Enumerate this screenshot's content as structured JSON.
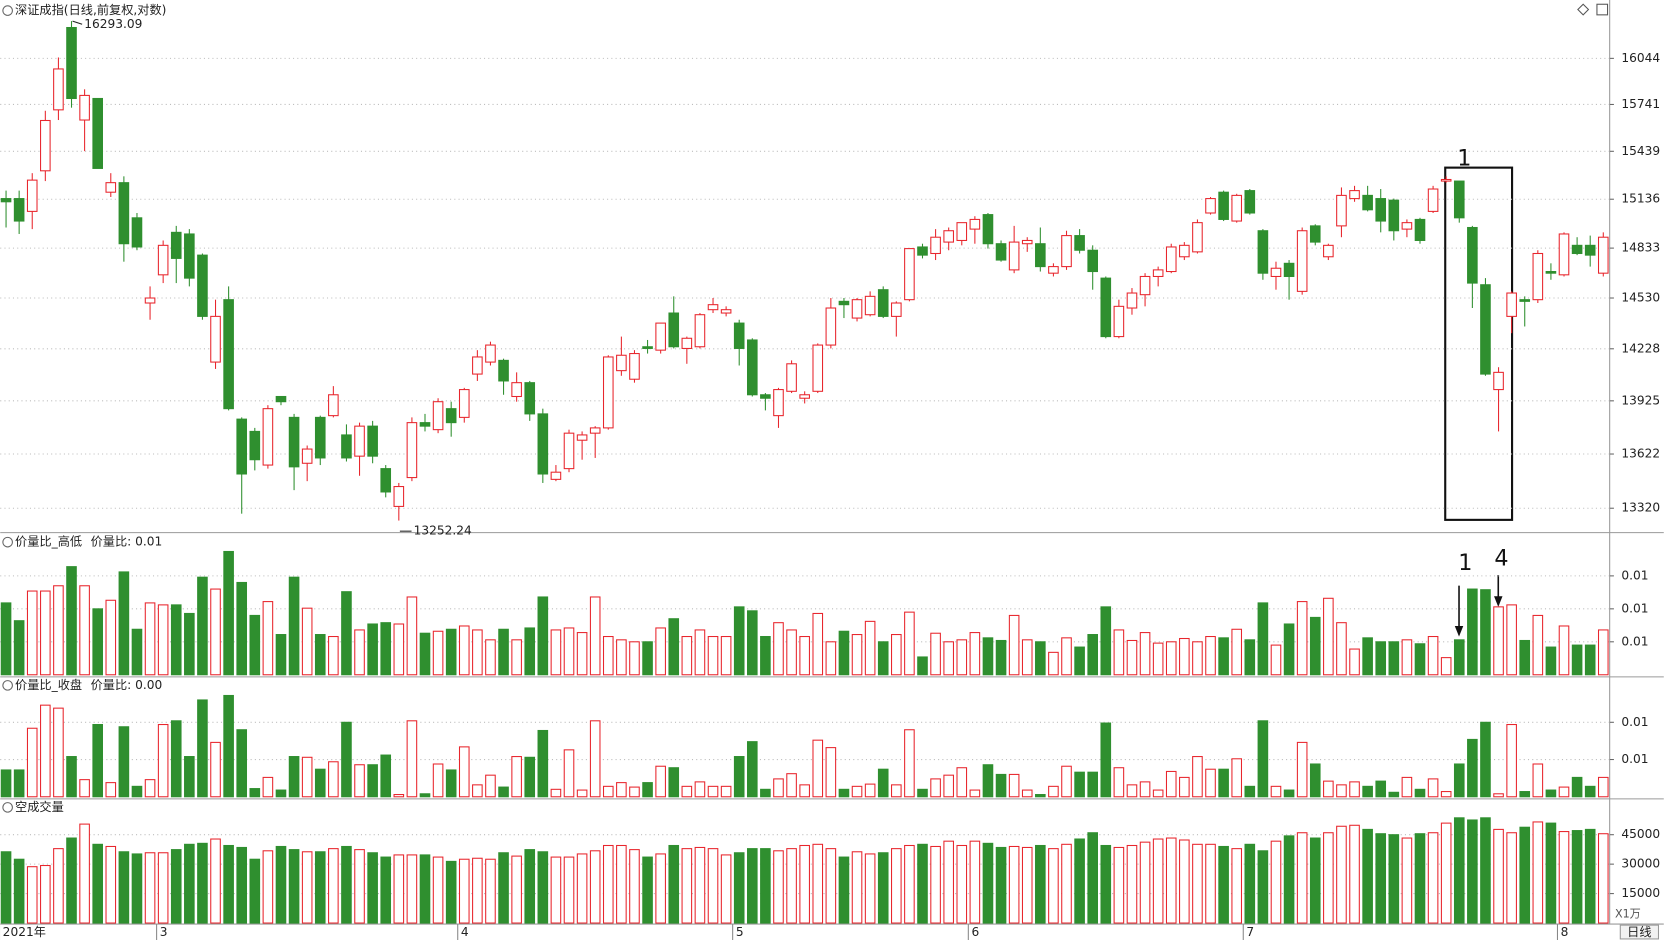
{
  "chart_data": [
    {
      "type": "candlestick",
      "title": "深证成指(日线,前复权,对数)",
      "period": "日线",
      "log_scale": true,
      "grid": true,
      "up_color": "#e8262d",
      "down_color": "#2f8f2f",
      "ylim": [
        13198,
        16400
      ],
      "yticks": [
        13320,
        13622,
        13925,
        14228,
        14530,
        14833,
        15136,
        15439,
        15741,
        16044
      ],
      "annotations": [
        "1"
      ],
      "categories": [
        "2021年",
        null,
        null,
        null,
        null,
        null,
        null,
        null,
        null,
        null,
        null,
        null,
        "3",
        null,
        null,
        null,
        null,
        null,
        null,
        null,
        null,
        null,
        null,
        null,
        null,
        null,
        null,
        null,
        null,
        null,
        null,
        null,
        null,
        null,
        null,
        "4",
        null,
        null,
        null,
        null,
        null,
        null,
        null,
        null,
        null,
        null,
        null,
        null,
        null,
        null,
        null,
        null,
        null,
        null,
        null,
        null,
        "5",
        null,
        null,
        null,
        null,
        null,
        null,
        null,
        null,
        null,
        null,
        null,
        null,
        null,
        null,
        null,
        null,
        null,
        "6",
        null,
        null,
        null,
        null,
        null,
        null,
        null,
        null,
        null,
        null,
        null,
        null,
        null,
        null,
        null,
        null,
        null,
        null,
        null,
        null,
        "7",
        null,
        null,
        null,
        null,
        null,
        null,
        null,
        null,
        null,
        null,
        null,
        null,
        null,
        null,
        null,
        null,
        null,
        null,
        null,
        null,
        null,
        null,
        null,
        "8",
        null,
        null,
        null
      ],
      "open": [
        15140,
        15140,
        15060,
        15315,
        15706,
        16250,
        15640,
        15780,
        15180,
        15240,
        15020,
        14500,
        14670,
        14930,
        14920,
        14790,
        14150,
        14520,
        13820,
        13750,
        13560,
        13950,
        13830,
        13570,
        13830,
        13840,
        13730,
        13610,
        13780,
        13540,
        13330,
        13490,
        13800,
        13760,
        13880,
        13830,
        14080,
        14150,
        14160,
        13950,
        14030,
        13850,
        13480,
        13540,
        13700,
        13740,
        13770,
        14100,
        14050,
        14240,
        14220,
        14440,
        14230,
        14240,
        14460,
        14440,
        14380,
        14280,
        13960,
        13840,
        13980,
        13940,
        13980,
        14250,
        14510,
        14410,
        14430,
        14580,
        14420,
        14520,
        14840,
        14800,
        14870,
        14880,
        14950,
        15040,
        14860,
        14700,
        14860,
        14860,
        14680,
        14720,
        14910,
        14820,
        14650,
        14300,
        14470,
        14550,
        14660,
        14690,
        14780,
        14810,
        15050,
        15180,
        15000,
        15190,
        14940,
        14660,
        14740,
        14570,
        14970,
        14780,
        14970,
        15140,
        15160,
        15140,
        15130,
        14950,
        15010,
        15060,
        15250,
        15250,
        14960,
        14610,
        13990,
        14420,
        14520,
        14520,
        14690,
        14670,
        14850,
        14850,
        14680
      ],
      "high": [
        15190,
        15190,
        15300,
        15700,
        16050,
        16293.09,
        15840,
        15780,
        15300,
        15280,
        15050,
        14600,
        14880,
        14970,
        14950,
        14800,
        14520,
        14600,
        13830,
        13770,
        13900,
        13950,
        13850,
        13670,
        13840,
        14010,
        13790,
        13800,
        13810,
        13560,
        13460,
        13830,
        13850,
        13940,
        13920,
        14000,
        14220,
        14270,
        14170,
        14090,
        14040,
        13880,
        13560,
        13760,
        13750,
        13780,
        14190,
        14300,
        14220,
        14280,
        14380,
        14540,
        14300,
        14440,
        14530,
        14480,
        14400,
        14290,
        13970,
        14000,
        14160,
        13980,
        14260,
        14530,
        14530,
        14530,
        14570,
        14600,
        14510,
        14830,
        14860,
        14950,
        14960,
        14990,
        15030,
        15050,
        14880,
        14970,
        14900,
        14960,
        14740,
        14940,
        14950,
        14850,
        14660,
        14520,
        14590,
        14680,
        14720,
        14860,
        14870,
        15010,
        15150,
        15190,
        15170,
        15200,
        14950,
        14750,
        14760,
        14960,
        14980,
        14860,
        15210,
        15220,
        15220,
        15200,
        15140,
        15010,
        15020,
        15220,
        15280,
        15250,
        14970,
        14650,
        14120,
        14570,
        14540,
        14820,
        14740,
        14930,
        14900,
        14910,
        14930
      ],
      "low": [
        14960,
        14920,
        14950,
        15250,
        15640,
        15720,
        15440,
        15330,
        15150,
        14750,
        14820,
        14400,
        14620,
        14620,
        14600,
        14400,
        14110,
        13870,
        13290,
        13530,
        13540,
        13900,
        13420,
        13470,
        13560,
        13830,
        13580,
        13500,
        13570,
        13380,
        13252.24,
        13470,
        13750,
        13740,
        13720,
        13800,
        14040,
        14130,
        13960,
        13920,
        13810,
        13460,
        13470,
        13520,
        13590,
        13600,
        13760,
        14070,
        14030,
        14200,
        14200,
        14230,
        14140,
        14230,
        14440,
        14420,
        14130,
        13950,
        13870,
        13770,
        13970,
        13910,
        13970,
        14230,
        14410,
        14390,
        14420,
        14410,
        14300,
        14510,
        14770,
        14760,
        14820,
        14850,
        14860,
        14830,
        14750,
        14680,
        14810,
        14690,
        14660,
        14700,
        14800,
        14580,
        14290,
        14290,
        14430,
        14480,
        14600,
        14680,
        14760,
        14800,
        15040,
        15000,
        14990,
        15040,
        14640,
        14580,
        14520,
        14550,
        14850,
        14760,
        14900,
        15120,
        15060,
        14930,
        14880,
        14900,
        14860,
        15050,
        15240,
        14990,
        14470,
        14070,
        13750,
        14320,
        14360,
        14500,
        14640,
        14660,
        14790,
        14720,
        14660
      ],
      "close": [
        15120,
        15000,
        15256,
        15637,
        15974,
        15780,
        15800,
        15330,
        15240,
        14860,
        14840,
        14530,
        14850,
        14770,
        14650,
        14420,
        14420,
        13880,
        13510,
        13590,
        13880,
        13920,
        13550,
        13650,
        13600,
        13960,
        13600,
        13780,
        13610,
        13410,
        13440,
        13800,
        13780,
        13920,
        13800,
        13990,
        14180,
        14250,
        14040,
        14030,
        13850,
        13510,
        13520,
        13740,
        13730,
        13770,
        14180,
        14190,
        14200,
        14230,
        14380,
        14240,
        14290,
        14430,
        14490,
        14460,
        14230,
        13960,
        13940,
        13990,
        14140,
        13960,
        14250,
        14470,
        14490,
        14520,
        14540,
        14420,
        14500,
        14830,
        14790,
        14900,
        14940,
        14990,
        15010,
        14860,
        14760,
        14870,
        14880,
        14720,
        14720,
        14910,
        14820,
        14690,
        14300,
        14480,
        14560,
        14660,
        14700,
        14840,
        14850,
        14990,
        15140,
        15010,
        15160,
        15050,
        14680,
        14710,
        14660,
        14940,
        14870,
        14850,
        15160,
        15190,
        15070,
        15000,
        14940,
        14990,
        14880,
        15200,
        15260,
        15020,
        14620,
        14080,
        14090,
        14560,
        14510,
        14800,
        14680,
        14920,
        14800,
        14790,
        14900
      ]
    },
    {
      "type": "bar",
      "title": "价量比_高低",
      "indicator": "价量比: 0.01",
      "grid": true,
      "ylim": [
        0,
        0.0206
      ],
      "yticks": [
        {
          "value": 0.005,
          "label": "0.01"
        },
        {
          "value": 0.01,
          "label": "0.01"
        },
        {
          "value": 0.015,
          "label": "0.01"
        }
      ],
      "annotations": [
        "1",
        "4"
      ],
      "values": [
        0.0109,
        0.0082,
        0.0127,
        0.0127,
        0.0135,
        0.0164,
        0.0135,
        0.01,
        0.0113,
        0.0156,
        0.0069,
        0.0109,
        0.0106,
        0.0106,
        0.0093,
        0.0148,
        0.013,
        0.0187,
        0.014,
        0.009,
        0.0111,
        0.0061,
        0.0148,
        0.0101,
        0.0061,
        0.0058,
        0.0126,
        0.0068,
        0.0077,
        0.0079,
        0.0077,
        0.0118,
        0.0063,
        0.0066,
        0.0069,
        0.0074,
        0.0068,
        0.0053,
        0.0069,
        0.0053,
        0.0071,
        0.0118,
        0.0068,
        0.0071,
        0.0064,
        0.0118,
        0.0058,
        0.0053,
        0.005,
        0.005,
        0.0071,
        0.0085,
        0.0058,
        0.0068,
        0.0058,
        0.0058,
        0.0103,
        0.0097,
        0.0058,
        0.0079,
        0.0068,
        0.0058,
        0.0093,
        0.005,
        0.0066,
        0.0061,
        0.0081,
        0.005,
        0.0061,
        0.0095,
        0.0027,
        0.0063,
        0.005,
        0.0053,
        0.0064,
        0.0056,
        0.0052,
        0.009,
        0.0053,
        0.005,
        0.0034,
        0.0056,
        0.0042,
        0.0061,
        0.0103,
        0.0068,
        0.0052,
        0.0064,
        0.0048,
        0.005,
        0.0055,
        0.005,
        0.0058,
        0.0056,
        0.0069,
        0.0053,
        0.0109,
        0.0045,
        0.0077,
        0.0111,
        0.0087,
        0.0116,
        0.0079,
        0.0039,
        0.0056,
        0.005,
        0.005,
        0.0053,
        0.0047,
        0.0058,
        0.0026,
        0.0053,
        0.013,
        0.0129,
        0.0103,
        0.0106,
        0.0052,
        0.009,
        0.0042,
        0.0074,
        0.0045,
        0.0045,
        0.0068
      ]
    },
    {
      "type": "bar",
      "title": "价量比_收盘",
      "indicator": "价量比: 0.00",
      "grid": true,
      "ylim": [
        0,
        0.0151
      ],
      "yticks": [
        {
          "value": 0.005,
          "label": "0.01"
        },
        {
          "value": 0.01,
          "label": "0.01"
        }
      ],
      "values": [
        0.0036,
        0.0036,
        0.0092,
        0.0123,
        0.0119,
        0.0054,
        0.0023,
        0.0097,
        0.0019,
        0.0094,
        0.0014,
        0.0023,
        0.0097,
        0.0102,
        0.0054,
        0.013,
        0.0073,
        0.0136,
        0.009,
        0.0011,
        0.0026,
        0.0009,
        0.0054,
        0.0053,
        0.0037,
        0.0047,
        0.01,
        0.0043,
        0.0043,
        0.0056,
        0.0003,
        0.0102,
        0.0004,
        0.0044,
        0.0036,
        0.0067,
        0.0016,
        0.0029,
        0.0013,
        0.0054,
        0.0053,
        0.0089,
        0.001,
        0.0063,
        0.0009,
        0.0102,
        0.0014,
        0.0019,
        0.0013,
        0.0019,
        0.0041,
        0.0039,
        0.0014,
        0.002,
        0.0014,
        0.0014,
        0.0054,
        0.0074,
        0.001,
        0.0024,
        0.0031,
        0.0016,
        0.0076,
        0.0066,
        0.001,
        0.0014,
        0.0017,
        0.0037,
        0.0016,
        0.009,
        0.001,
        0.0024,
        0.0029,
        0.0039,
        0.0009,
        0.0043,
        0.003,
        0.003,
        0.0009,
        0.0003,
        0.0014,
        0.0041,
        0.0033,
        0.0033,
        0.0099,
        0.0039,
        0.0016,
        0.002,
        0.0009,
        0.0034,
        0.0026,
        0.0054,
        0.0037,
        0.0037,
        0.0051,
        0.0014,
        0.0102,
        0.0014,
        0.0009,
        0.0073,
        0.0044,
        0.0021,
        0.0016,
        0.002,
        0.0014,
        0.0021,
        0.0006,
        0.0026,
        0.001,
        0.0024,
        0.0007,
        0.0044,
        0.0077,
        0.01,
        0.0004,
        0.0097,
        0.0007,
        0.0044,
        0.0009,
        0.0013,
        0.0026,
        0.0014,
        0.0026
      ]
    },
    {
      "type": "bar",
      "title": "空成交量",
      "unit": "X1万",
      "grid": true,
      "ylim": [
        0,
        60000
      ],
      "yticks": [
        15000,
        30000,
        45000
      ],
      "values": [
        36300,
        32500,
        28700,
        29300,
        37900,
        43300,
        50400,
        40100,
        39000,
        36300,
        35200,
        35800,
        35800,
        37400,
        40100,
        40600,
        42800,
        39500,
        38500,
        32500,
        36800,
        39000,
        37400,
        36300,
        36300,
        37900,
        39000,
        37400,
        35800,
        33600,
        34700,
        34700,
        34700,
        33600,
        31400,
        32500,
        33000,
        32500,
        35800,
        34100,
        37400,
        36300,
        33600,
        33600,
        35200,
        36800,
        39500,
        39500,
        37400,
        33600,
        35200,
        39500,
        37900,
        38500,
        37900,
        34700,
        35800,
        37900,
        37900,
        36800,
        37900,
        39500,
        40100,
        37900,
        33600,
        36300,
        35200,
        35800,
        37900,
        39500,
        40100,
        39000,
        41700,
        39500,
        41700,
        40600,
        38500,
        39000,
        38500,
        39500,
        37900,
        40100,
        42800,
        46000,
        39500,
        38500,
        39500,
        41200,
        42800,
        43300,
        42300,
        40100,
        40100,
        39000,
        37900,
        40100,
        36800,
        41700,
        44400,
        46000,
        43300,
        46000,
        49300,
        49800,
        47700,
        45500,
        45000,
        43300,
        45500,
        46000,
        50900,
        53600,
        52500,
        53600,
        47700,
        46000,
        48800,
        51500,
        50900,
        46600,
        47100,
        47700,
        45500
      ]
    }
  ]
}
